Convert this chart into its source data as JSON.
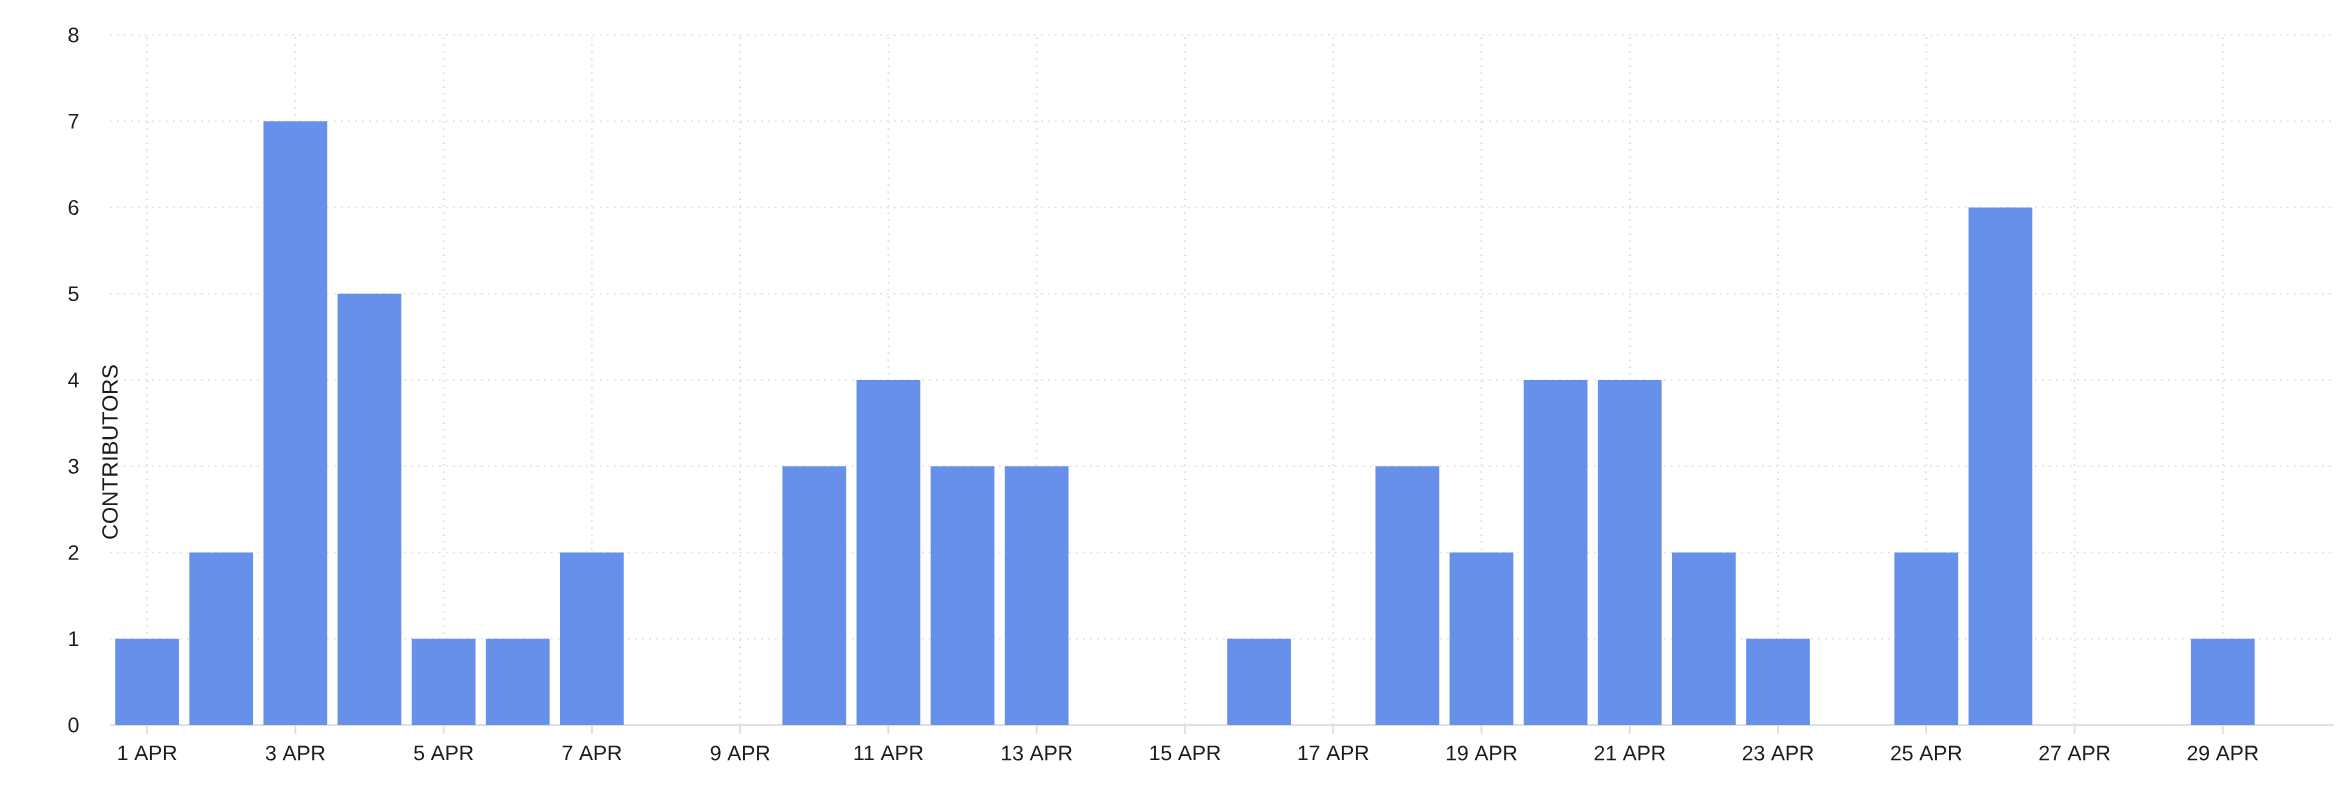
{
  "chart_data": {
    "type": "bar",
    "ylabel": "CONTRIBUTORS",
    "categories": [
      "1 APR",
      null,
      "3 APR",
      null,
      "5 APR",
      null,
      "7 APR",
      null,
      "9 APR",
      null,
      "11 APR",
      null,
      "13 APR",
      null,
      "15 APR",
      null,
      "17 APR",
      null,
      "19 APR",
      null,
      "21 APR",
      null,
      "23 APR",
      null,
      "25 APR",
      null,
      "27 APR",
      null,
      "29 APR",
      null
    ],
    "values": [
      1,
      2,
      7,
      5,
      1,
      1,
      2,
      0,
      0,
      3,
      4,
      3,
      3,
      0,
      0,
      1,
      0,
      3,
      2,
      4,
      4,
      2,
      1,
      0,
      2,
      6,
      0,
      0,
      1,
      0
    ],
    "color": "#6690ea",
    "ylim": [
      0,
      8
    ],
    "yticks": [
      0,
      1,
      2,
      3,
      4,
      5,
      6,
      7,
      8
    ],
    "grid": true
  }
}
